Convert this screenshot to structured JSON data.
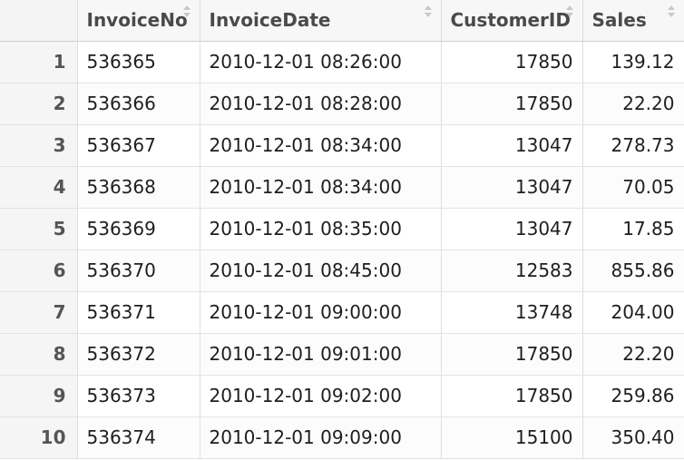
{
  "table": {
    "columns": [
      "",
      "InvoiceNo",
      "InvoiceDate",
      "CustomerID",
      "Sales"
    ],
    "rows": [
      {
        "index": "1",
        "InvoiceNo": "536365",
        "InvoiceDate": "2010-12-01 08:26:00",
        "CustomerID": "17850",
        "Sales": "139.12"
      },
      {
        "index": "2",
        "InvoiceNo": "536366",
        "InvoiceDate": "2010-12-01 08:28:00",
        "CustomerID": "17850",
        "Sales": "22.20"
      },
      {
        "index": "3",
        "InvoiceNo": "536367",
        "InvoiceDate": "2010-12-01 08:34:00",
        "CustomerID": "13047",
        "Sales": "278.73"
      },
      {
        "index": "4",
        "InvoiceNo": "536368",
        "InvoiceDate": "2010-12-01 08:34:00",
        "CustomerID": "13047",
        "Sales": "70.05"
      },
      {
        "index": "5",
        "InvoiceNo": "536369",
        "InvoiceDate": "2010-12-01 08:35:00",
        "CustomerID": "13047",
        "Sales": "17.85"
      },
      {
        "index": "6",
        "InvoiceNo": "536370",
        "InvoiceDate": "2010-12-01 08:45:00",
        "CustomerID": "12583",
        "Sales": "855.86"
      },
      {
        "index": "7",
        "InvoiceNo": "536371",
        "InvoiceDate": "2010-12-01 09:00:00",
        "CustomerID": "13748",
        "Sales": "204.00"
      },
      {
        "index": "8",
        "InvoiceNo": "536372",
        "InvoiceDate": "2010-12-01 09:01:00",
        "CustomerID": "17850",
        "Sales": "22.20"
      },
      {
        "index": "9",
        "InvoiceNo": "536373",
        "InvoiceDate": "2010-12-01 09:02:00",
        "CustomerID": "17850",
        "Sales": "259.86"
      },
      {
        "index": "10",
        "InvoiceNo": "536374",
        "InvoiceDate": "2010-12-01 09:09:00",
        "CustomerID": "15100",
        "Sales": "350.40"
      }
    ]
  },
  "icons": {
    "sort": "sort-arrows-icon"
  },
  "colors": {
    "header_bg": "#f7f7f7",
    "index_bg": "#f5f5f5",
    "grid_line": "#dedede",
    "text": "#1e1e1e"
  }
}
